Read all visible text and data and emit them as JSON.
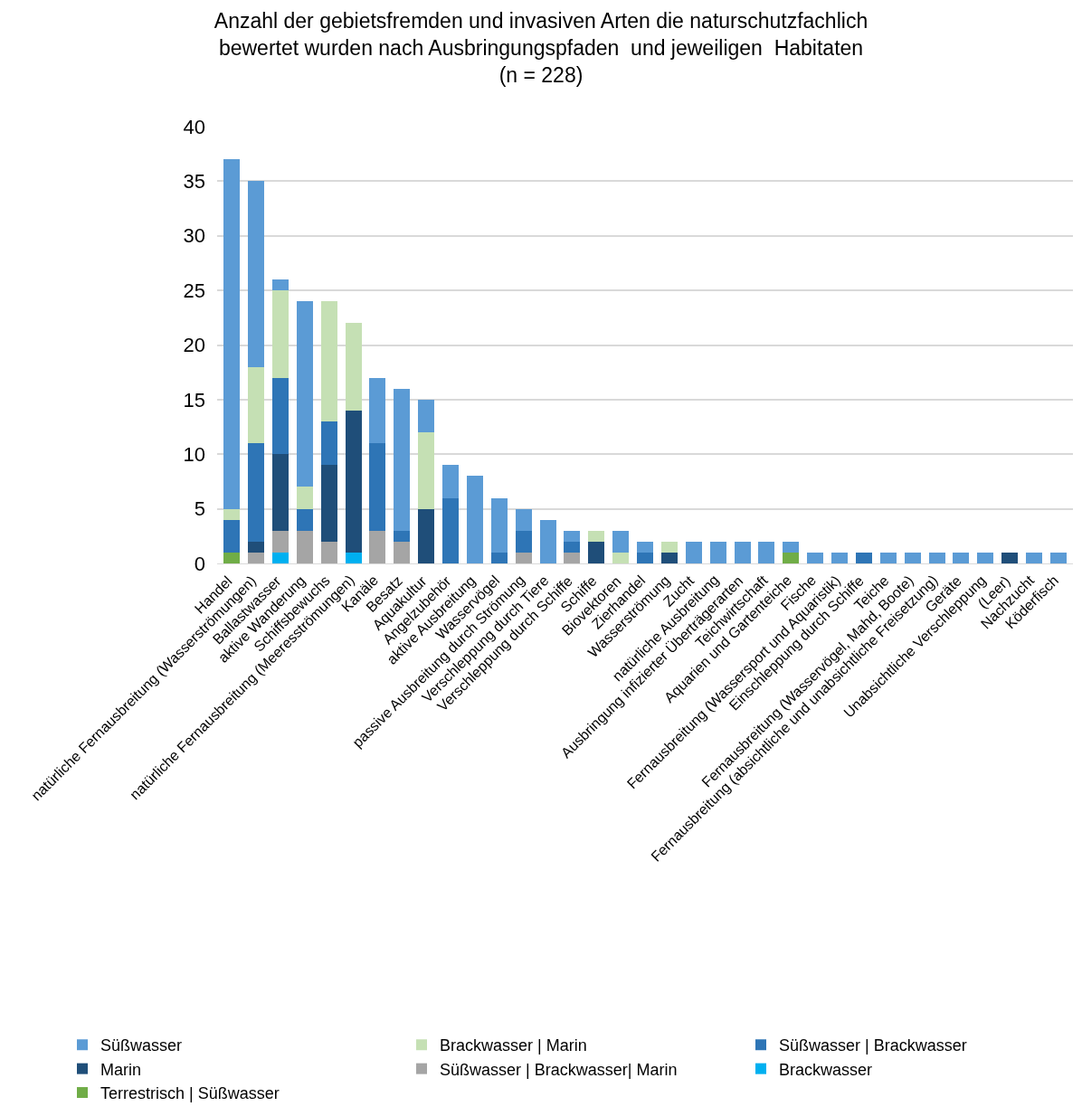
{
  "chart_data": {
    "type": "bar",
    "title": "Anzahl der gebietsfremden und invasiven Arten die naturschutzfachlich\nbewertet wurden nach Ausbringungspfaden  und jeweiligen  Habitaten\n(n = 228)",
    "categories": [
      "Handel",
      "natürliche Fernausbreitung (Wasserströmungen)",
      "Ballastwasser",
      "aktive Wanderung",
      "Schiffsbewuchs",
      "natürliche Fernausbreitung (Meeresströmungen)",
      "Kanäle",
      "Besatz",
      "Aquakultur",
      "Angelzubehör",
      "aktive Ausbreitung",
      "Wasservögel",
      "passive Ausbreitung durch Strömung",
      "Verschleppung durch Tiere",
      "Verschleppung durch Schiffe",
      "Schiffe",
      "Biovektoren",
      "Zierhandel",
      "Wasserströmung",
      "Zucht",
      "natürliche Ausbreitung",
      "Ausbringung infizierter Überträgerarten",
      "Teichwirtschaft",
      "Aquarien und Gartenteiche",
      "Fische",
      "Fernausbreitung (Wassersport und Aquaristik)",
      "Einschleppung durch Schiffe",
      "Teiche",
      "Fernausbreitung (Wasservögel, Mahd, Boote)",
      "Fernausbreitung (absichtliche und unabsichtliche Freisetzung)",
      "Geräte",
      "Unabsichtliche Verschleppung",
      "(Leer)",
      "Nachzucht",
      "Köderfisch"
    ],
    "stacked": true,
    "series": [
      {
        "name": "Terrestrisch | Süßwasser",
        "color": "#70ad47",
        "values": [
          1,
          0,
          0,
          0,
          0,
          0,
          0,
          0,
          0,
          0,
          0,
          0,
          0,
          0,
          0,
          0,
          0,
          0,
          0,
          0,
          0,
          0,
          0,
          1,
          0,
          0,
          0,
          0,
          0,
          0,
          0,
          0,
          0,
          0,
          0
        ]
      },
      {
        "name": "Brackwasser",
        "color": "#00b0f0",
        "values": [
          0,
          0,
          1,
          0,
          0,
          1,
          0,
          0,
          0,
          0,
          0,
          0,
          0,
          0,
          0,
          0,
          0,
          0,
          0,
          0,
          0,
          0,
          0,
          0,
          0,
          0,
          0,
          0,
          0,
          0,
          0,
          0,
          0,
          0,
          0
        ]
      },
      {
        "name": "Süßwasser | Brackwasser| Marin",
        "color": "#a5a5a5",
        "values": [
          0,
          1,
          2,
          3,
          2,
          0,
          3,
          2,
          0,
          0,
          0,
          0,
          1,
          0,
          1,
          0,
          0,
          0,
          0,
          0,
          0,
          0,
          0,
          0,
          0,
          0,
          0,
          0,
          0,
          0,
          0,
          0,
          0,
          0,
          0
        ]
      },
      {
        "name": "Marin",
        "color": "#1f4e79",
        "values": [
          0,
          1,
          7,
          0,
          7,
          13,
          0,
          0,
          5,
          0,
          0,
          0,
          0,
          0,
          0,
          2,
          0,
          0,
          1,
          0,
          0,
          0,
          0,
          0,
          0,
          0,
          0,
          0,
          0,
          0,
          0,
          0,
          1,
          0,
          0
        ]
      },
      {
        "name": "Süßwasser | Brackwasser",
        "color": "#2e75b6",
        "values": [
          3,
          9,
          7,
          2,
          4,
          0,
          8,
          1,
          0,
          6,
          0,
          1,
          2,
          0,
          1,
          0,
          0,
          1,
          0,
          0,
          0,
          0,
          0,
          0,
          0,
          0,
          1,
          0,
          0,
          0,
          0,
          0,
          0,
          0,
          0
        ]
      },
      {
        "name": "Brackwasser | Marin",
        "color": "#c5e0b4",
        "values": [
          1,
          7,
          8,
          2,
          11,
          8,
          0,
          0,
          7,
          0,
          0,
          0,
          0,
          0,
          0,
          1,
          1,
          0,
          1,
          0,
          0,
          0,
          0,
          0,
          0,
          0,
          0,
          0,
          0,
          0,
          0,
          0,
          0,
          0,
          0
        ]
      },
      {
        "name": "Süßwasser",
        "color": "#5b9bd5",
        "values": [
          32,
          17,
          1,
          17,
          0,
          0,
          6,
          13,
          3,
          3,
          8,
          5,
          2,
          4,
          1,
          0,
          2,
          1,
          0,
          2,
          2,
          2,
          2,
          1,
          1,
          1,
          0,
          1,
          1,
          1,
          1,
          1,
          0,
          1,
          1
        ]
      }
    ],
    "ylim": [
      0,
      40
    ],
    "yticks": [
      0,
      5,
      10,
      15,
      20,
      25,
      30,
      35,
      40
    ],
    "grid": "y",
    "legend": "bottom"
  }
}
